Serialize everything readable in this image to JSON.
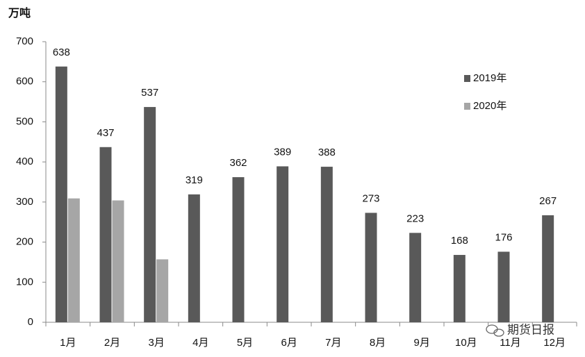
{
  "chart_data": {
    "type": "bar",
    "y_label": "万吨",
    "categories": [
      "1月",
      "2月",
      "3月",
      "4月",
      "5月",
      "6月",
      "7月",
      "8月",
      "9月",
      "10月",
      "11月",
      "12月"
    ],
    "series": [
      {
        "name": "2019年",
        "color": "#595959",
        "data_labels": true,
        "values": [
          638,
          437,
          537,
          319,
          362,
          389,
          388,
          273,
          223,
          168,
          176,
          267
        ]
      },
      {
        "name": "2020年",
        "color": "#a6a6a6",
        "data_labels": false,
        "values": [
          309,
          304,
          157,
          null,
          null,
          null,
          null,
          null,
          null,
          null,
          null,
          null
        ]
      }
    ],
    "ylim": [
      0,
      700
    ],
    "yticks": [
      0,
      100,
      200,
      300,
      400,
      500,
      600,
      700
    ],
    "grid": false,
    "legend": "upper right",
    "watermark": "期货日报"
  }
}
